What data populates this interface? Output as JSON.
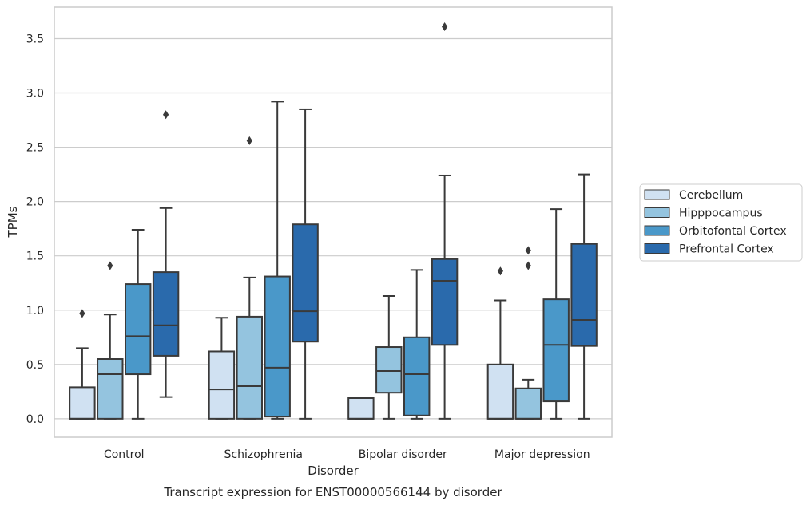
{
  "chart_data": {
    "type": "box",
    "caption": "Transcript expression for ENST00000566144 by disorder",
    "xlabel": "Disorder",
    "ylabel": "TPMs",
    "ylim": [
      -0.17,
      3.79
    ],
    "yticks": [
      "0.0",
      "0.5",
      "1.0",
      "1.5",
      "2.0",
      "2.5",
      "3.0",
      "3.5"
    ],
    "grid": "horizontal",
    "legend_position": "right",
    "categories": [
      "Control",
      "Schizophrenia",
      "Bipolar disorder",
      "Major depression"
    ],
    "colors": {
      "Cerebellum": "#d0e1f2",
      "Hipppocampus": "#94c4df",
      "Orbitofontal Cortex": "#4a98c9",
      "Prefrontal Cortex": "#2a6aac",
      "axes": "#cccccc",
      "lines": "#3a3a3a"
    },
    "series": [
      {
        "name": "Cerebellum",
        "boxes": [
          {
            "whislo": 0.0,
            "q1": 0.0,
            "med": 0.0,
            "q3": 0.29,
            "whishi": 0.65,
            "fliers": [
              0.97
            ]
          },
          {
            "whislo": 0.0,
            "q1": 0.0,
            "med": 0.27,
            "q3": 0.62,
            "whishi": 0.93,
            "fliers": []
          },
          {
            "whislo": 0.0,
            "q1": 0.0,
            "med": 0.0,
            "q3": 0.19,
            "whishi": 0.19,
            "fliers": []
          },
          {
            "whislo": 0.0,
            "q1": 0.0,
            "med": 0.0,
            "q3": 0.5,
            "whishi": 1.09,
            "fliers": [
              1.36
            ]
          }
        ]
      },
      {
        "name": "Hipppocampus",
        "boxes": [
          {
            "whislo": 0.0,
            "q1": 0.0,
            "med": 0.41,
            "q3": 0.55,
            "whishi": 0.96,
            "fliers": [
              1.41
            ]
          },
          {
            "whislo": 0.0,
            "q1": 0.0,
            "med": 0.3,
            "q3": 0.94,
            "whishi": 1.3,
            "fliers": [
              2.56
            ]
          },
          {
            "whislo": 0.0,
            "q1": 0.24,
            "med": 0.44,
            "q3": 0.66,
            "whishi": 1.13,
            "fliers": []
          },
          {
            "whislo": 0.0,
            "q1": 0.0,
            "med": 0.0,
            "q3": 0.28,
            "whishi": 0.36,
            "fliers": [
              1.41,
              1.55
            ]
          }
        ]
      },
      {
        "name": "Orbitofontal Cortex",
        "boxes": [
          {
            "whislo": 0.0,
            "q1": 0.41,
            "med": 0.76,
            "q3": 1.24,
            "whishi": 1.74,
            "fliers": []
          },
          {
            "whislo": 0.0,
            "q1": 0.02,
            "med": 0.47,
            "q3": 1.31,
            "whishi": 2.92,
            "fliers": []
          },
          {
            "whislo": 0.0,
            "q1": 0.03,
            "med": 0.41,
            "q3": 0.75,
            "whishi": 1.37,
            "fliers": []
          },
          {
            "whislo": 0.0,
            "q1": 0.16,
            "med": 0.68,
            "q3": 1.1,
            "whishi": 1.93,
            "fliers": []
          }
        ]
      },
      {
        "name": "Prefrontal Cortex",
        "boxes": [
          {
            "whislo": 0.2,
            "q1": 0.58,
            "med": 0.86,
            "q3": 1.35,
            "whishi": 1.94,
            "fliers": [
              2.8
            ]
          },
          {
            "whislo": 0.0,
            "q1": 0.71,
            "med": 0.99,
            "q3": 1.79,
            "whishi": 2.85,
            "fliers": []
          },
          {
            "whislo": 0.0,
            "q1": 0.68,
            "med": 1.27,
            "q3": 1.47,
            "whishi": 2.24,
            "fliers": [
              3.61
            ]
          },
          {
            "whislo": 0.0,
            "q1": 0.67,
            "med": 0.91,
            "q3": 1.61,
            "whishi": 2.25,
            "fliers": []
          }
        ]
      }
    ]
  }
}
